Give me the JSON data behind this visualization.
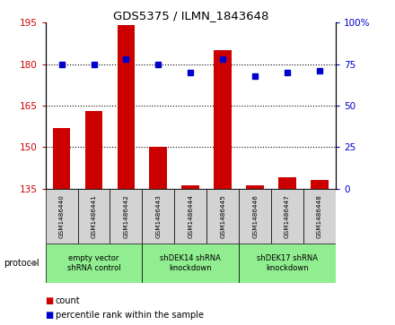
{
  "title": "GDS5375 / ILMN_1843648",
  "samples": [
    "GSM1486440",
    "GSM1486441",
    "GSM1486442",
    "GSM1486443",
    "GSM1486444",
    "GSM1486445",
    "GSM1486446",
    "GSM1486447",
    "GSM1486448"
  ],
  "counts": [
    157,
    163,
    194,
    150,
    136,
    185,
    136,
    139,
    138
  ],
  "percentiles": [
    75,
    75,
    78,
    75,
    70,
    78,
    68,
    70,
    71
  ],
  "ylim_left": [
    135,
    195
  ],
  "ylim_right": [
    0,
    100
  ],
  "yticks_left": [
    135,
    150,
    165,
    180,
    195
  ],
  "yticks_right": [
    0,
    25,
    50,
    75,
    100
  ],
  "ytick_labels_right": [
    "0",
    "25",
    "50",
    "75",
    "100%"
  ],
  "bar_color": "#cc0000",
  "dot_color": "#0000cc",
  "groups": [
    {
      "label": "empty vector\nshRNA control",
      "start": 0,
      "end": 3,
      "color": "#90ee90"
    },
    {
      "label": "shDEK14 shRNA\nknockdown",
      "start": 3,
      "end": 6,
      "color": "#90ee90"
    },
    {
      "label": "shDEK17 shRNA\nknockdown",
      "start": 6,
      "end": 9,
      "color": "#90ee90"
    }
  ],
  "protocol_label": "protocol",
  "legend_count_label": "count",
  "legend_percentile_label": "percentile rank within the sample",
  "background_color": "#ffffff",
  "sample_box_color": "#d3d3d3",
  "grid_yticks": [
    150,
    165,
    180
  ]
}
